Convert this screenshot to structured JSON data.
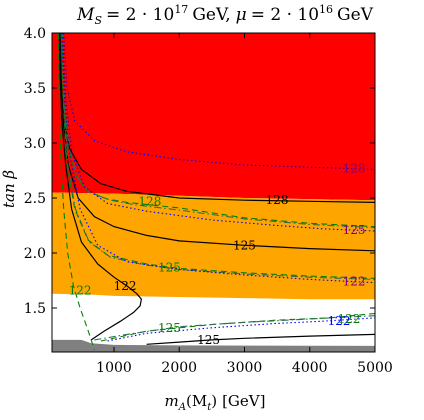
{
  "chart_data": {
    "type": "contour",
    "title": {
      "ms_symbol": "M",
      "ms_sub": "S",
      "ms_value": "= 2 · 10",
      "ms_exp": "17",
      "ms_unit": "GeV,",
      "mu_symbol": "μ",
      "mu_value": "= 2 · 10",
      "mu_exp": "16",
      "mu_unit": "GeV"
    },
    "xlabel": {
      "symbol": "m",
      "sub": "A",
      "arg": "(M",
      "arg_sub": "t",
      "close": ")",
      "unit": "[GeV]"
    },
    "ylabel": "tan β",
    "xlim": [
      50,
      5000
    ],
    "ylim": [
      1.1,
      4.0
    ],
    "xticks": [
      {
        "v": 1000,
        "label": "1000"
      },
      {
        "v": 2000,
        "label": "2000"
      },
      {
        "v": 3000,
        "label": "3000"
      },
      {
        "v": 4000,
        "label": "4000"
      },
      {
        "v": 5000,
        "label": "5000"
      }
    ],
    "yticks": [
      {
        "v": 1.5,
        "label": "1.5"
      },
      {
        "v": 2.0,
        "label": "2.0"
      },
      {
        "v": 2.5,
        "label": "2.5"
      },
      {
        "v": 3.0,
        "label": "3.0"
      },
      {
        "v": 3.5,
        "label": "3.5"
      },
      {
        "v": 4.0,
        "label": "4.0"
      }
    ],
    "colors": {
      "excluded_red": "#ff0000",
      "band_orange": "#ffa500",
      "excluded_gray": "#808080",
      "solid_line": "#000000",
      "dashed_line": "#008000",
      "dashdot_line": "#2f6f4f",
      "dotted_line": "#0000ff",
      "label_purple": "#800080"
    },
    "regions": [
      {
        "name": "red-region",
        "color": "#ff0000",
        "upper": [
          [
            50,
            4.0
          ],
          [
            5000,
            4.0
          ]
        ],
        "lower": [
          [
            50,
            2.55
          ],
          [
            1000,
            2.54
          ],
          [
            2000,
            2.52
          ],
          [
            3000,
            2.5
          ],
          [
            4000,
            2.49
          ],
          [
            5000,
            2.48
          ]
        ]
      },
      {
        "name": "orange-region",
        "color": "#ffa500",
        "upper": [
          [
            50,
            2.55
          ],
          [
            1000,
            2.54
          ],
          [
            2000,
            2.52
          ],
          [
            3000,
            2.5
          ],
          [
            4000,
            2.49
          ],
          [
            5000,
            2.48
          ]
        ],
        "lower": [
          [
            50,
            1.63
          ],
          [
            700,
            1.62
          ],
          [
            1000,
            1.61
          ],
          [
            2000,
            1.6
          ],
          [
            3000,
            1.59
          ],
          [
            4000,
            1.58
          ],
          [
            5000,
            1.58
          ]
        ]
      },
      {
        "name": "gray-region",
        "color": "#808080",
        "upper": [
          [
            50,
            1.21
          ],
          [
            500,
            1.21
          ],
          [
            650,
            1.18
          ],
          [
            1000,
            1.165
          ],
          [
            2000,
            1.16
          ],
          [
            5000,
            1.155
          ]
        ],
        "lower": [
          [
            50,
            1.1
          ],
          [
            5000,
            1.1
          ]
        ]
      }
    ],
    "series": [
      {
        "style": "solid",
        "label": "128",
        "label_at": [
          3500,
          2.48
        ],
        "label_color": "#000000",
        "points": [
          [
            175,
            4.0
          ],
          [
            190,
            3.6
          ],
          [
            230,
            3.2
          ],
          [
            320,
            2.95
          ],
          [
            500,
            2.76
          ],
          [
            800,
            2.63
          ],
          [
            1200,
            2.56
          ],
          [
            2000,
            2.5
          ],
          [
            3000,
            2.48
          ],
          [
            4000,
            2.47
          ],
          [
            5000,
            2.46
          ]
        ]
      },
      {
        "style": "solid",
        "label": "125",
        "label_at": [
          3000,
          2.07
        ],
        "label_color": "#000000",
        "points": [
          [
            170,
            4.0
          ],
          [
            185,
            3.6
          ],
          [
            220,
            3.2
          ],
          [
            300,
            2.8
          ],
          [
            450,
            2.5
          ],
          [
            700,
            2.33
          ],
          [
            1000,
            2.24
          ],
          [
            1500,
            2.16
          ],
          [
            2000,
            2.11
          ],
          [
            3000,
            2.07
          ],
          [
            4000,
            2.04
          ],
          [
            5000,
            2.02
          ]
        ]
      },
      {
        "style": "solid",
        "label": "122",
        "label_at": [
          1170,
          1.7
        ],
        "label_color": "#000000",
        "points": [
          [
            160,
            4.0
          ],
          [
            175,
            3.6
          ],
          [
            200,
            3.2
          ],
          [
            260,
            2.8
          ],
          [
            350,
            2.4
          ],
          [
            500,
            2.1
          ],
          [
            750,
            1.9
          ],
          [
            1000,
            1.78
          ],
          [
            1200,
            1.7
          ],
          [
            1350,
            1.63
          ],
          [
            1420,
            1.58
          ],
          [
            1400,
            1.52
          ],
          [
            1300,
            1.46
          ],
          [
            1100,
            1.38
          ],
          [
            850,
            1.29
          ],
          [
            650,
            1.21
          ]
        ]
      },
      {
        "style": "solid",
        "label": "125",
        "label_at": [
          2450,
          1.21
        ],
        "label_color": "#000000",
        "points": [
          [
            1500,
            1.17
          ],
          [
            2000,
            1.19
          ],
          [
            2500,
            1.21
          ],
          [
            3000,
            1.225
          ],
          [
            4000,
            1.245
          ],
          [
            5000,
            1.26
          ]
        ]
      },
      {
        "style": "dashed",
        "label": "122",
        "label_at": [
          480,
          1.66
        ],
        "label_color": "#008000",
        "points": [
          [
            150,
            4.0
          ],
          [
            155,
            3.6
          ],
          [
            170,
            3.2
          ],
          [
            190,
            2.8
          ],
          [
            230,
            2.4
          ],
          [
            290,
            2.0
          ],
          [
            380,
            1.7
          ],
          [
            480,
            1.5
          ],
          [
            600,
            1.3
          ],
          [
            700,
            1.12
          ]
        ]
      },
      {
        "style": "dashed",
        "label": "128",
        "label_at": [
          1550,
          2.47
        ],
        "label_color": "#008000",
        "points": [
          [
            200,
            4.0
          ],
          [
            230,
            3.4
          ],
          [
            300,
            2.95
          ],
          [
            420,
            2.7
          ],
          [
            600,
            2.56
          ],
          [
            900,
            2.49
          ],
          [
            1200,
            2.46
          ],
          [
            2000,
            2.41
          ],
          [
            3000,
            2.32
          ],
          [
            4000,
            2.27
          ],
          [
            5000,
            2.24
          ]
        ]
      },
      {
        "style": "dashed",
        "label": "125",
        "label_at": [
          1850,
          1.87
        ],
        "label_color": "#008000",
        "points": [
          [
            190,
            4.0
          ],
          [
            220,
            3.4
          ],
          [
            280,
            2.8
          ],
          [
            400,
            2.4
          ],
          [
            600,
            2.12
          ],
          [
            900,
            1.98
          ],
          [
            1500,
            1.9
          ],
          [
            2000,
            1.86
          ],
          [
            3000,
            1.82
          ],
          [
            4000,
            1.79
          ],
          [
            5000,
            1.77
          ]
        ]
      },
      {
        "style": "dashed",
        "label": "122",
        "label_at": [
          4600,
          1.4
        ],
        "label_color": "#008000",
        "points": [
          [
            800,
            1.2
          ],
          [
            1500,
            1.29
          ],
          [
            2500,
            1.35
          ],
          [
            3500,
            1.39
          ],
          [
            4300,
            1.41
          ],
          [
            5000,
            1.45
          ]
        ]
      },
      {
        "style": "dashdot",
        "label": "",
        "label_at": null,
        "label_color": "#2f6f4f",
        "points": [
          [
            210,
            4.0
          ],
          [
            240,
            3.4
          ],
          [
            310,
            2.95
          ],
          [
            430,
            2.7
          ],
          [
            620,
            2.55
          ],
          [
            950,
            2.48
          ],
          [
            1300,
            2.44
          ],
          [
            2000,
            2.39
          ],
          [
            3000,
            2.31
          ],
          [
            4000,
            2.26
          ],
          [
            5000,
            2.23
          ]
        ]
      },
      {
        "style": "dashdot",
        "label": "",
        "label_at": null,
        "label_color": "#2f6f4f",
        "points": [
          [
            200,
            4.0
          ],
          [
            230,
            3.4
          ],
          [
            290,
            2.8
          ],
          [
            410,
            2.4
          ],
          [
            620,
            2.1
          ],
          [
            950,
            1.96
          ],
          [
            1500,
            1.89
          ],
          [
            2000,
            1.85
          ],
          [
            3000,
            1.81
          ],
          [
            4000,
            1.78
          ],
          [
            5000,
            1.76
          ]
        ]
      },
      {
        "style": "dashdot",
        "label": "125",
        "label_at": [
          1850,
          1.32
        ],
        "label_color": "#008000",
        "points": [
          [
            700,
            1.21
          ],
          [
            1200,
            1.26
          ],
          [
            2000,
            1.33
          ],
          [
            3000,
            1.37
          ],
          [
            4000,
            1.4
          ],
          [
            5000,
            1.43
          ]
        ]
      },
      {
        "style": "dotted",
        "label": "128",
        "label_at": [
          4680,
          2.77
        ],
        "label_color": "#800080",
        "points": [
          [
            230,
            4.0
          ],
          [
            280,
            3.5
          ],
          [
            400,
            3.2
          ],
          [
            700,
            3.02
          ],
          [
            1200,
            2.92
          ],
          [
            2000,
            2.85
          ],
          [
            3000,
            2.8
          ],
          [
            4000,
            2.78
          ],
          [
            5000,
            2.76
          ]
        ]
      },
      {
        "style": "dotted",
        "label": "125",
        "label_at": [
          4680,
          2.21
        ],
        "label_color": "#800080",
        "points": [
          [
            210,
            4.0
          ],
          [
            260,
            3.4
          ],
          [
            360,
            2.9
          ],
          [
            550,
            2.6
          ],
          [
            900,
            2.45
          ],
          [
            1500,
            2.38
          ],
          [
            2500,
            2.3
          ],
          [
            3500,
            2.25
          ],
          [
            4200,
            2.22
          ],
          [
            5000,
            2.2
          ]
        ]
      },
      {
        "style": "dotted",
        "label": "122",
        "label_at": [
          4680,
          1.74
        ],
        "label_color": "#800080",
        "points": [
          [
            200,
            4.0
          ],
          [
            240,
            3.4
          ],
          [
            320,
            2.9
          ],
          [
            480,
            2.4
          ],
          [
            750,
            2.07
          ],
          [
            1200,
            1.92
          ],
          [
            2000,
            1.85
          ],
          [
            3000,
            1.8
          ],
          [
            4000,
            1.76
          ],
          [
            5000,
            1.73
          ]
        ]
      },
      {
        "style": "dotted",
        "label": "122",
        "label_at": [
          4450,
          1.38
        ],
        "label_color": "#0000ff",
        "points": [
          [
            900,
            1.2
          ],
          [
            1500,
            1.27
          ],
          [
            2500,
            1.32
          ],
          [
            3500,
            1.36
          ],
          [
            4200,
            1.38
          ],
          [
            5000,
            1.41
          ]
        ]
      }
    ]
  }
}
